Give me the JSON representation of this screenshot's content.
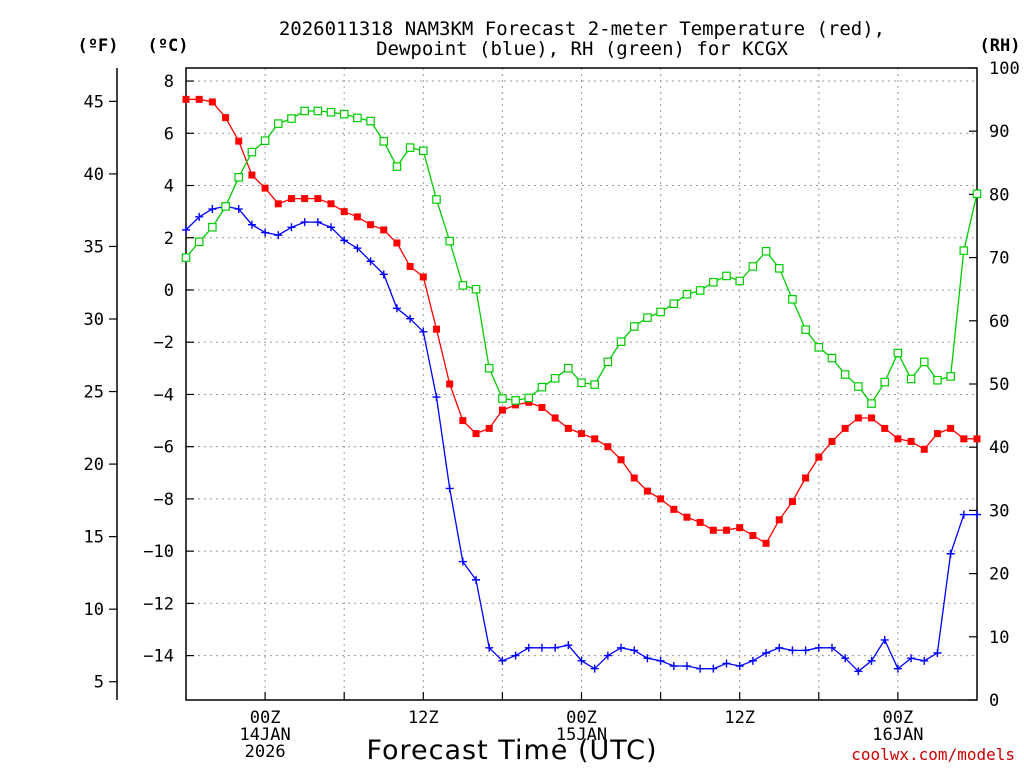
{
  "chart_data": {
    "type": "line",
    "title_lines": [
      "2026011318 NAM3KM Forecast 2-meter Temperature (red),",
      "Dewpoint (blue), RH (green) for KCGX"
    ],
    "xlabel": "Forecast Time (UTC)",
    "credit": "coolwx.com/models",
    "unit_labels": {
      "fahrenheit": "(ºF)",
      "celsius": "(ºC)",
      "rh": "(RH)"
    },
    "x_range_hours": [
      0,
      60
    ],
    "x_ticks": [
      {
        "hour": 6,
        "lines": [
          "00Z",
          "14JAN",
          "2026"
        ]
      },
      {
        "hour": 18,
        "lines": [
          "12Z"
        ]
      },
      {
        "hour": 30,
        "lines": [
          "00Z",
          "15JAN"
        ]
      },
      {
        "hour": 42,
        "lines": [
          "12Z"
        ]
      },
      {
        "hour": 54,
        "lines": [
          "00Z",
          "16JAN"
        ]
      }
    ],
    "grid_hours": [
      6,
      12,
      18,
      24,
      30,
      36,
      42,
      48,
      54
    ],
    "celsius_axis": {
      "min": -15.7,
      "max": 8.5,
      "ticks": [
        8,
        6,
        4,
        2,
        0,
        -2,
        -4,
        -6,
        -8,
        -10,
        -12,
        -14
      ]
    },
    "fahrenheit_axis": {
      "ticks": [
        45,
        40,
        35,
        30,
        25,
        20,
        15,
        10,
        5
      ]
    },
    "rh_axis": {
      "min": 0,
      "max": 100,
      "ticks": [
        100,
        90,
        80,
        70,
        60,
        50,
        40,
        30,
        20,
        10,
        0
      ]
    },
    "series": [
      {
        "name": "2-meter Temperature",
        "unit": "°C",
        "color": "#ff0000",
        "marker": "filled-square",
        "values": [
          7.3,
          7.3,
          7.2,
          6.6,
          5.7,
          4.4,
          3.9,
          3.3,
          3.5,
          3.5,
          3.5,
          3.3,
          3.0,
          2.8,
          2.5,
          2.3,
          1.8,
          0.9,
          0.5,
          -1.5,
          -3.6,
          -5.0,
          -5.5,
          -5.3,
          -4.6,
          -4.4,
          -4.3,
          -4.5,
          -4.9,
          -5.3,
          -5.5,
          -5.7,
          -6.0,
          -6.5,
          -7.2,
          -7.7,
          -8.0,
          -8.4,
          -8.7,
          -8.9,
          -9.2,
          -9.2,
          -9.1,
          -9.4,
          -9.7,
          -8.8,
          -8.1,
          -7.2,
          -6.4,
          -5.8,
          -5.3,
          -4.9,
          -4.9,
          -5.3,
          -5.7,
          -5.8,
          -6.1,
          -5.5,
          -5.3,
          -5.7,
          -5.7
        ]
      },
      {
        "name": "Dewpoint",
        "unit": "°C",
        "color": "#0000ff",
        "marker": "plus",
        "values": [
          2.3,
          2.8,
          3.1,
          3.2,
          3.1,
          2.5,
          2.2,
          2.1,
          2.4,
          2.6,
          2.6,
          2.4,
          1.9,
          1.6,
          1.1,
          0.6,
          -0.7,
          -1.1,
          -1.6,
          -4.1,
          -7.6,
          -10.4,
          -11.1,
          -13.7,
          -14.2,
          -14.0,
          -13.7,
          -13.7,
          -13.7,
          -13.6,
          -14.2,
          -14.5,
          -14.0,
          -13.7,
          -13.8,
          -14.1,
          -14.2,
          -14.4,
          -14.4,
          -14.5,
          -14.5,
          -14.3,
          -14.4,
          -14.2,
          -13.9,
          -13.7,
          -13.8,
          -13.8,
          -13.7,
          -13.7,
          -14.1,
          -14.6,
          -14.2,
          -13.4,
          -14.5,
          -14.1,
          -14.2,
          -13.9,
          -10.1,
          -8.6,
          -8.6
        ]
      },
      {
        "name": "RH",
        "unit": "%",
        "color": "#00cc00",
        "marker": "open-square",
        "values": [
          70,
          72.5,
          74.8,
          78.1,
          82.7,
          86.7,
          88.5,
          91.2,
          92,
          93.2,
          93.2,
          93,
          92.7,
          92.1,
          91.6,
          88.4,
          84.4,
          87.4,
          86.9,
          79.2,
          72.6,
          65.6,
          65,
          52.5,
          47.7,
          47.4,
          47.8,
          49.5,
          50.9,
          52.5,
          50.2,
          49.9,
          53.5,
          56.7,
          59.1,
          60.5,
          61.4,
          62.7,
          64.2,
          64.8,
          66.1,
          67.1,
          66.3,
          68.6,
          71,
          68.3,
          63.4,
          58.6,
          55.8,
          54.1,
          51.5,
          49.6,
          46.9,
          50.3,
          54.9,
          50.8,
          53.5,
          50.6,
          51.2,
          71.1,
          80.1
        ]
      }
    ]
  }
}
